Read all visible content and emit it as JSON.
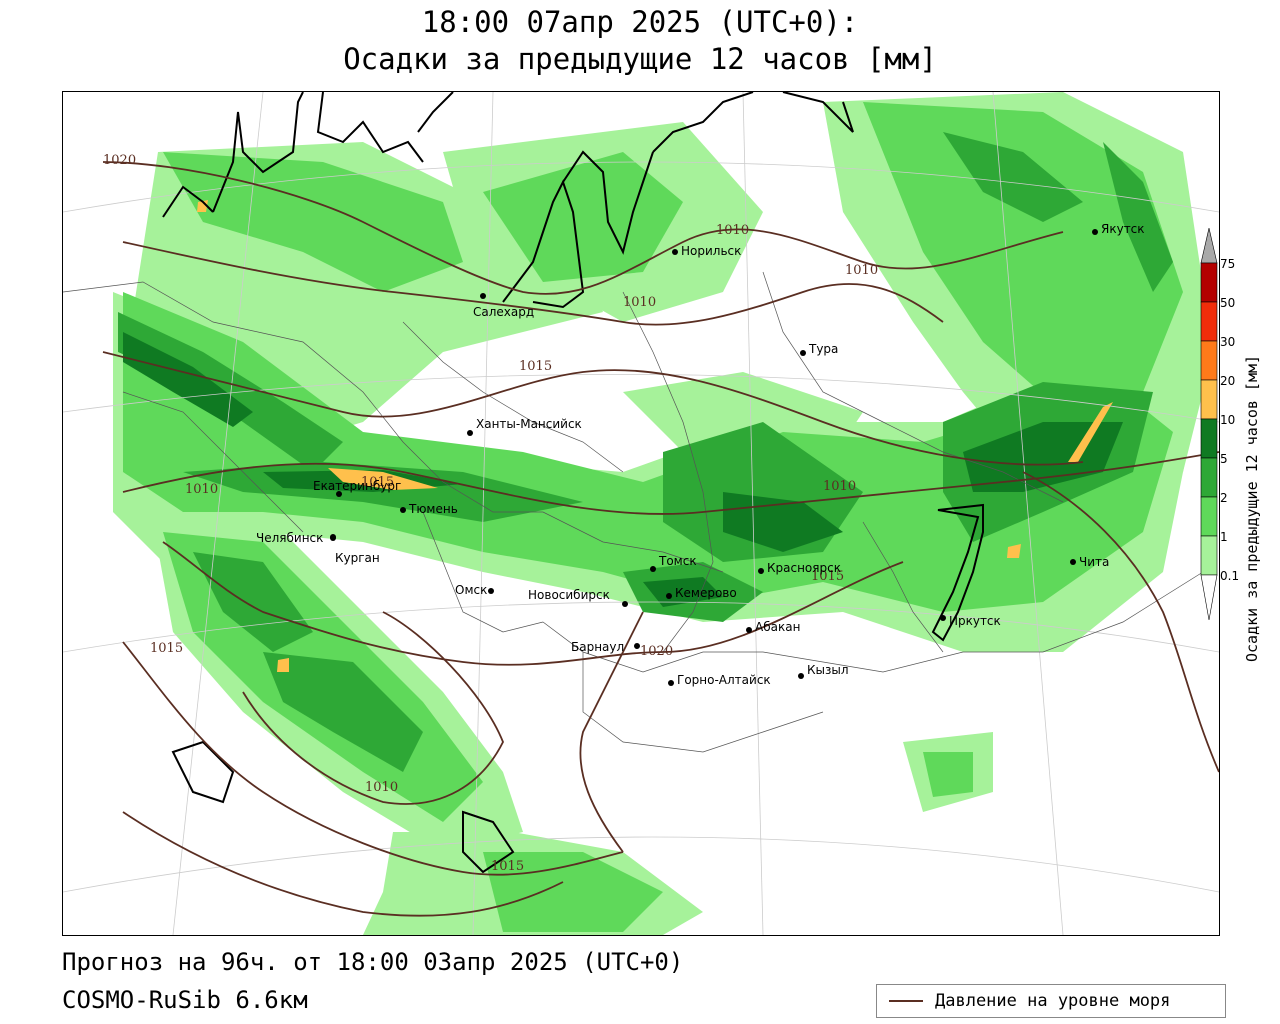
{
  "title_line1": "18:00 07апр 2025 (UTC+0):",
  "title_line2": "Осадки за предыдущие 12 часов [мм]",
  "footer_line1": "Прогноз на 96ч. от 18:00 03апр 2025 (UTC+0)",
  "footer_line2": "COSMO-RuSib 6.6км",
  "legend_label": "Давление на уровне моря",
  "colorbar_title": "Осадки за предыдущие 12 часов [мм]",
  "colorbar": {
    "ticks": [
      "0.1",
      "1",
      "2",
      "5",
      "10",
      "20",
      "30",
      "50",
      "75"
    ],
    "colors": [
      "#a6f29a",
      "#5fd95a",
      "#2ea836",
      "#0f7a22",
      "#ffc04c",
      "#ff7a1a",
      "#f02d0a",
      "#b30000",
      "#a9a9a9"
    ]
  },
  "colors": {
    "green_light": "#a6f29a",
    "green_mid": "#5fd95a",
    "green_dark": "#2ea836",
    "green_darkest": "#0f7a22",
    "orange": "#ffc04c",
    "isobar": "#5a2e22"
  },
  "cities": [
    {
      "name": "Норильск"
    },
    {
      "name": "Якутск"
    },
    {
      "name": "Салехард"
    },
    {
      "name": "Тура"
    },
    {
      "name": "Ханты-Мансийск"
    },
    {
      "name": "Екатеринбург"
    },
    {
      "name": "Тюмень"
    },
    {
      "name": "Челябинск"
    },
    {
      "name": "Курган"
    },
    {
      "name": "Омск"
    },
    {
      "name": "Новосибирск"
    },
    {
      "name": "Томск"
    },
    {
      "name": "Кемерово"
    },
    {
      "name": "Красноярск"
    },
    {
      "name": "Абакан"
    },
    {
      "name": "Барнаул"
    },
    {
      "name": "Горно-Алтайск"
    },
    {
      "name": "Кызыл"
    },
    {
      "name": "Иркутск"
    },
    {
      "name": "Чита"
    }
  ],
  "isobar_labels": [
    "1020",
    "1010",
    "1010",
    "1010",
    "1015",
    "1010",
    "1015",
    "1010",
    "1015",
    "1020",
    "1015",
    "1010",
    "1015"
  ]
}
